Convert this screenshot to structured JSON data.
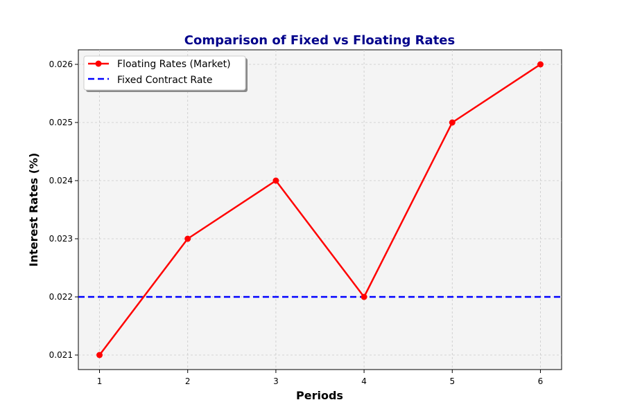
{
  "chart_data": {
    "type": "line",
    "title": "Comparison of Fixed vs Floating Rates",
    "xlabel": "Periods",
    "ylabel": "Interest Rates (%)",
    "xlim": [
      0.76,
      6.24
    ],
    "ylim": [
      0.02075,
      0.02625
    ],
    "x_ticks": [
      1,
      2,
      3,
      4,
      5,
      6
    ],
    "y_ticks": [
      0.021,
      0.022,
      0.023,
      0.024,
      0.025,
      0.026
    ],
    "x_tick_labels": [
      "1",
      "2",
      "3",
      "4",
      "5",
      "6"
    ],
    "y_tick_labels": [
      "0.021",
      "0.022",
      "0.023",
      "0.024",
      "0.025",
      "0.026"
    ],
    "grid": true,
    "legend_position": "top-left",
    "series": [
      {
        "name": "Floating Rates (Market)",
        "style": "solid-line-with-circle-markers",
        "color": "#ff0000",
        "x": [
          1,
          2,
          3,
          4,
          5,
          6
        ],
        "values": [
          0.021,
          0.023,
          0.024,
          0.022,
          0.025,
          0.026
        ]
      },
      {
        "name": "Fixed Contract Rate",
        "style": "dashed-horizontal-line",
        "color": "#0000ff",
        "value": 0.022
      }
    ],
    "colors": {
      "title": "#00008b",
      "plot_background": "#f4f4f4",
      "grid": "#c8c8c8"
    }
  }
}
